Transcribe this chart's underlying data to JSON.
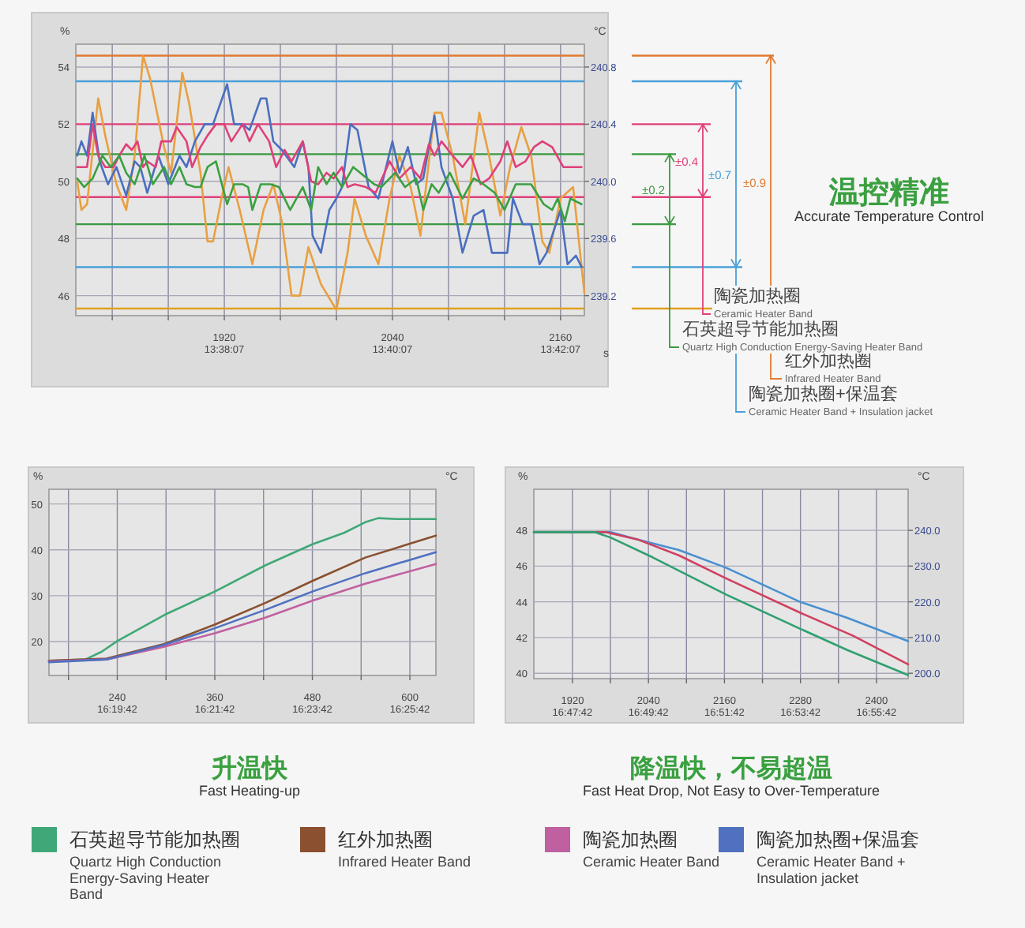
{
  "chart_data": [
    {
      "type": "line",
      "xlabel": "s",
      "ylabel": "%",
      "y2label": "°C",
      "xlim": [
        1814,
        2177
      ],
      "ylim": [
        45.3,
        54.8
      ],
      "y2lim": [
        239.06,
        240.96
      ],
      "xticks": [
        {
          "value": 1840,
          "label": null
        },
        {
          "value": 1880,
          "label": null
        },
        1920,
        {
          "value": 1960,
          "label": null
        },
        {
          "value": 2000,
          "label": null
        },
        2040,
        {
          "value": 2080,
          "label": null
        },
        {
          "value": 2120,
          "label": null
        },
        2160
      ],
      "x2lim": [
        13.605833,
        13.706667
      ],
      "x2ticks": [
        {
          "value": 13.635278,
          "label": "13:38:07"
        },
        {
          "value": 13.668611,
          "label": "13:40:07"
        },
        {
          "value": 13.701944,
          "label": "13:42:07"
        }
      ],
      "yticks": [
        46,
        48,
        50,
        52,
        54
      ],
      "y2ticks": [
        239.2,
        239.6,
        {
          "value": 240,
          "label": "240.0"
        },
        240.4,
        240.8
      ],
      "grid": true,
      "ref_lines": [
        {
          "axis": "y2",
          "value": 240.88,
          "color": "#e07a30"
        },
        {
          "axis": "y2",
          "value": 239.11,
          "color": "#e0a020"
        },
        {
          "axis": "y2",
          "value": 240.7,
          "color": "#4aa0d8"
        },
        {
          "axis": "y2",
          "value": 239.4,
          "color": "#4aa0d8"
        },
        {
          "axis": "y2",
          "value": 240.4,
          "color": "#e0407a"
        },
        {
          "axis": "y2",
          "value": 239.89,
          "color": "#e0407a"
        },
        {
          "axis": "y2",
          "value": 240.19,
          "color": "#3a9a40"
        },
        {
          "axis": "y2",
          "value": 239.7,
          "color": "#3a9a40"
        }
      ],
      "annotations": [
        "±0.9",
        "±0.7",
        "±0.4",
        "±0.2",
        "红外加热圈\nInfrared Heater Band",
        "陶瓷加热圈+保温套\nCeramic Heater Band + Insulation jacket",
        "陶瓷加热圈\nCeramic Heater Band",
        "石英超导节能加热圈\nQuartz High Conduction Energy-Saving Heater Band"
      ],
      "series": [
        {
          "color": "#e8a040",
          "x": [
            1815,
            1818,
            1822,
            1830,
            1835,
            1843,
            1850,
            1856,
            1862,
            1867,
            1877,
            1882,
            1890,
            1895,
            1903,
            1908,
            1912,
            1918,
            1923,
            1931,
            1940,
            1948,
            1955,
            1961,
            1968,
            1974,
            1980,
            1989,
            2000,
            2008,
            2013,
            2021,
            2030,
            2038,
            2045,
            2053,
            2060,
            2070,
            2075,
            2083,
            2092,
            2102,
            2109,
            2117,
            2124,
            2132,
            2139,
            2147,
            2152,
            2160,
            2169,
            2177
          ],
          "values": [
            50.0,
            49.0,
            49.2,
            52.9,
            51.6,
            49.9,
            49.0,
            50.9,
            54.4,
            53.6,
            51.2,
            50.3,
            53.8,
            52.7,
            50.3,
            47.9,
            47.9,
            49.4,
            50.5,
            49.0,
            47.1,
            49.0,
            49.9,
            48.6,
            46.0,
            46.0,
            47.7,
            46.4,
            45.5,
            47.5,
            49.4,
            48.1,
            47.1,
            49.4,
            50.9,
            49.8,
            48.1,
            52.4,
            52.4,
            50.9,
            48.5,
            52.4,
            50.9,
            48.8,
            50.5,
            51.9,
            50.9,
            47.9,
            47.5,
            49.4,
            49.8,
            46.1
          ]
        },
        {
          "color": "#4a6fc0",
          "x": [
            1815,
            1818,
            1822,
            1826,
            1831,
            1837,
            1843,
            1850,
            1856,
            1860,
            1865,
            1873,
            1880,
            1888,
            1893,
            1899,
            1906,
            1912,
            1922,
            1927,
            1933,
            1938,
            1946,
            1950,
            1955,
            1961,
            1970,
            1976,
            1980,
            1983,
            1989,
            1995,
            2000,
            2004,
            2010,
            2015,
            2023,
            2030,
            2040,
            2045,
            2051,
            2057,
            2062,
            2070,
            2075,
            2083,
            2090,
            2098,
            2105,
            2111,
            2122,
            2126,
            2133,
            2139,
            2145,
            2150,
            2160,
            2165,
            2171,
            2175
          ],
          "values": [
            50.9,
            51.4,
            50.9,
            52.4,
            50.7,
            49.9,
            50.5,
            49.5,
            50.7,
            50.5,
            49.6,
            50.9,
            49.9,
            50.9,
            50.5,
            51.4,
            52.0,
            52.0,
            53.4,
            52.0,
            52.0,
            51.8,
            52.9,
            52.9,
            51.4,
            51.1,
            50.5,
            51.4,
            50.5,
            48.1,
            47.5,
            49.0,
            49.4,
            49.8,
            52.0,
            51.8,
            49.8,
            49.4,
            51.4,
            50.3,
            51.2,
            49.9,
            50.1,
            52.3,
            50.5,
            49.4,
            47.5,
            48.8,
            49.0,
            47.5,
            47.5,
            49.4,
            48.5,
            48.5,
            47.1,
            47.5,
            49.0,
            47.1,
            47.4,
            47.0
          ]
        },
        {
          "color": "#e0407a",
          "x": [
            1815,
            1822,
            1826,
            1830,
            1835,
            1841,
            1845,
            1850,
            1854,
            1858,
            1862,
            1865,
            1871,
            1875,
            1882,
            1886,
            1893,
            1897,
            1903,
            1908,
            1914,
            1920,
            1925,
            1933,
            1938,
            1944,
            1952,
            1957,
            1963,
            1968,
            1976,
            1982,
            1987,
            1993,
            1998,
            2004,
            2008,
            2013,
            2021,
            2028,
            2038,
            2045,
            2053,
            2060,
            2066,
            2070,
            2075,
            2083,
            2090,
            2096,
            2103,
            2109,
            2117,
            2122,
            2128,
            2135,
            2141,
            2147,
            2154,
            2162,
            2175
          ],
          "values": [
            50.5,
            50.5,
            52.0,
            50.9,
            50.5,
            50.5,
            50.9,
            51.3,
            51.1,
            51.4,
            50.5,
            50.7,
            50.5,
            51.4,
            51.4,
            51.9,
            51.4,
            50.5,
            51.2,
            51.6,
            52.0,
            52.0,
            51.4,
            52.0,
            51.4,
            52.0,
            51.4,
            50.5,
            51.1,
            50.7,
            51.4,
            50.0,
            49.9,
            50.3,
            50.1,
            50.5,
            49.8,
            49.9,
            49.8,
            49.6,
            50.7,
            50.1,
            50.5,
            50.1,
            51.3,
            50.9,
            51.4,
            50.9,
            50.5,
            50.9,
            49.9,
            50.1,
            50.7,
            51.4,
            50.5,
            50.7,
            51.2,
            51.4,
            51.2,
            50.5,
            50.5
          ]
        },
        {
          "color": "#3aa040",
          "x": [
            1815,
            1820,
            1826,
            1833,
            1839,
            1845,
            1850,
            1856,
            1863,
            1869,
            1877,
            1882,
            1888,
            1893,
            1899,
            1903,
            1908,
            1914,
            1922,
            1927,
            1933,
            1937,
            1940,
            1946,
            1953,
            1959,
            1967,
            1976,
            1982,
            1987,
            1993,
            1998,
            2004,
            2012,
            2017,
            2027,
            2032,
            2042,
            2049,
            2057,
            2062,
            2068,
            2073,
            2081,
            2090,
            2098,
            2105,
            2113,
            2120,
            2128,
            2139,
            2148,
            2154,
            2158,
            2163,
            2167,
            2175
          ],
          "values": [
            50.1,
            49.8,
            50.1,
            50.9,
            50.5,
            50.9,
            50.3,
            49.9,
            50.9,
            49.9,
            50.5,
            49.9,
            50.5,
            49.9,
            49.8,
            49.8,
            50.5,
            50.7,
            49.2,
            49.9,
            49.9,
            49.8,
            49.0,
            49.9,
            49.9,
            49.8,
            49.0,
            49.8,
            49.0,
            50.5,
            49.9,
            50.3,
            49.8,
            50.5,
            50.3,
            49.9,
            49.8,
            50.3,
            49.8,
            50.1,
            49.0,
            49.9,
            49.6,
            50.3,
            49.4,
            50.1,
            49.9,
            49.6,
            49.0,
            49.9,
            49.9,
            49.2,
            49.0,
            49.4,
            48.6,
            49.4,
            49.2
          ]
        }
      ]
    },
    {
      "type": "other",
      "title": "温控精准",
      "subtitle": "Accurate Temperature Control"
    },
    {
      "type": "line",
      "title": "升温快",
      "subtitle": "Fast Heating-up",
      "ylabel": "%",
      "y2label": "°C",
      "xlim": [
        156,
        632
      ],
      "ylim": [
        12.6,
        53.2
      ],
      "xticks": [
        {
          "value": 180,
          "label": null
        },
        240,
        {
          "value": 300,
          "label": null
        },
        360,
        {
          "value": 420,
          "label": null
        },
        480,
        {
          "value": 540,
          "label": null
        },
        600
      ],
      "x2lim": [
        16.305,
        16.437222
      ],
      "x2ticks": [
        {
          "value": 16.328333,
          "label": "16:19:42"
        },
        {
          "value": 16.361667,
          "label": "16:21:42"
        },
        {
          "value": 16.395,
          "label": "16:23:42"
        },
        {
          "value": 16.428333,
          "label": "16:25:42"
        }
      ],
      "yticks": [
        20,
        30,
        40,
        50
      ],
      "grid": true,
      "legend": "bottom",
      "series": [
        {
          "name": "石英超导节能加热圈\nQuartz High Conduction Energy-Saving Heater Band",
          "color": "#40a878",
          "x": [
            156,
            201,
            221,
            240,
            298,
            360,
            422,
            480,
            519,
            545,
            561,
            584,
            632
          ],
          "values": [
            15.8,
            16.1,
            17.8,
            20.1,
            25.8,
            30.9,
            36.6,
            41.2,
            43.7,
            46.0,
            46.9,
            46.7,
            46.7
          ]
        },
        {
          "name": "红外加热圈\nInfrared Heater Band",
          "color": "#8a5030",
          "x": [
            156,
            227,
            298,
            360,
            422,
            480,
            545,
            632
          ],
          "values": [
            15.8,
            16.3,
            19.5,
            23.7,
            28.4,
            33.2,
            38.3,
            43.1
          ]
        },
        {
          "name": "陶瓷加热圈\nCeramic Heater Band",
          "color": "#c060a0",
          "x": [
            156,
            227,
            298,
            360,
            422,
            480,
            545,
            632
          ],
          "values": [
            15.7,
            16.1,
            18.9,
            21.8,
            25.2,
            28.9,
            32.6,
            36.9
          ]
        },
        {
          "name": "陶瓷加热圈+保温套\nCeramic Heater Band + Insulation jacket",
          "color": "#5070c0",
          "x": [
            156,
            227,
            298,
            360,
            422,
            480,
            545,
            632
          ],
          "values": [
            15.5,
            16.1,
            19.3,
            22.9,
            26.9,
            30.9,
            34.9,
            39.5
          ]
        }
      ]
    },
    {
      "type": "line",
      "title": "降温快，不易超温",
      "subtitle": "Fast Heat Drop, Not Easy to Over-Temperature",
      "ylabel": "%",
      "y2label": "°C",
      "xlim": [
        1859,
        2450
      ],
      "ylim": [
        39.7,
        50.3
      ],
      "y2lim": [
        198.5,
        251.5
      ],
      "xticks": [
        1920,
        {
          "value": 1980,
          "label": null
        },
        2040,
        {
          "value": 2100,
          "label": null
        },
        2160,
        {
          "value": 2220,
          "label": null
        },
        2280,
        {
          "value": 2340,
          "label": null
        },
        2400
      ],
      "x2lim": [
        16.778056,
        16.942222
      ],
      "x2ticks": [
        {
          "value": 16.795,
          "label": "16:47:42"
        },
        {
          "value": 16.828333,
          "label": "16:49:42"
        },
        {
          "value": 16.861667,
          "label": "16:51:42"
        },
        {
          "value": 16.895,
          "label": "16:53:42"
        },
        {
          "value": 16.928333,
          "label": "16:55:42"
        }
      ],
      "yticks": [
        40,
        42,
        44,
        46,
        48
      ],
      "y2ticks": [
        {
          "value": 200,
          "label": "200.0"
        },
        {
          "value": 210,
          "label": "210.0"
        },
        {
          "value": 220,
          "label": "220.0"
        },
        {
          "value": 230,
          "label": "230.0"
        },
        {
          "value": 240,
          "label": "240.0"
        }
      ],
      "grid": true,
      "series": [
        {
          "color": "#4a90d0",
          "x": [
            1859,
            1980,
            2022,
            2088,
            2163,
            2279,
            2354,
            2450
          ],
          "values": [
            47.9,
            47.9,
            47.5,
            46.9,
            45.9,
            44.0,
            43.1,
            41.8
          ]
        },
        {
          "color": "#d04060",
          "x": [
            1859,
            1972,
            2022,
            2088,
            2163,
            2279,
            2363,
            2450
          ],
          "values": [
            47.9,
            47.9,
            47.5,
            46.6,
            45.3,
            43.4,
            42.1,
            40.5
          ]
        },
        {
          "color": "#30a070",
          "x": [
            1859,
            1955,
            1980,
            2046,
            2163,
            2279,
            2354,
            2450
          ],
          "values": [
            47.9,
            47.9,
            47.6,
            46.5,
            44.4,
            42.5,
            41.3,
            39.9
          ]
        }
      ]
    }
  ]
}
